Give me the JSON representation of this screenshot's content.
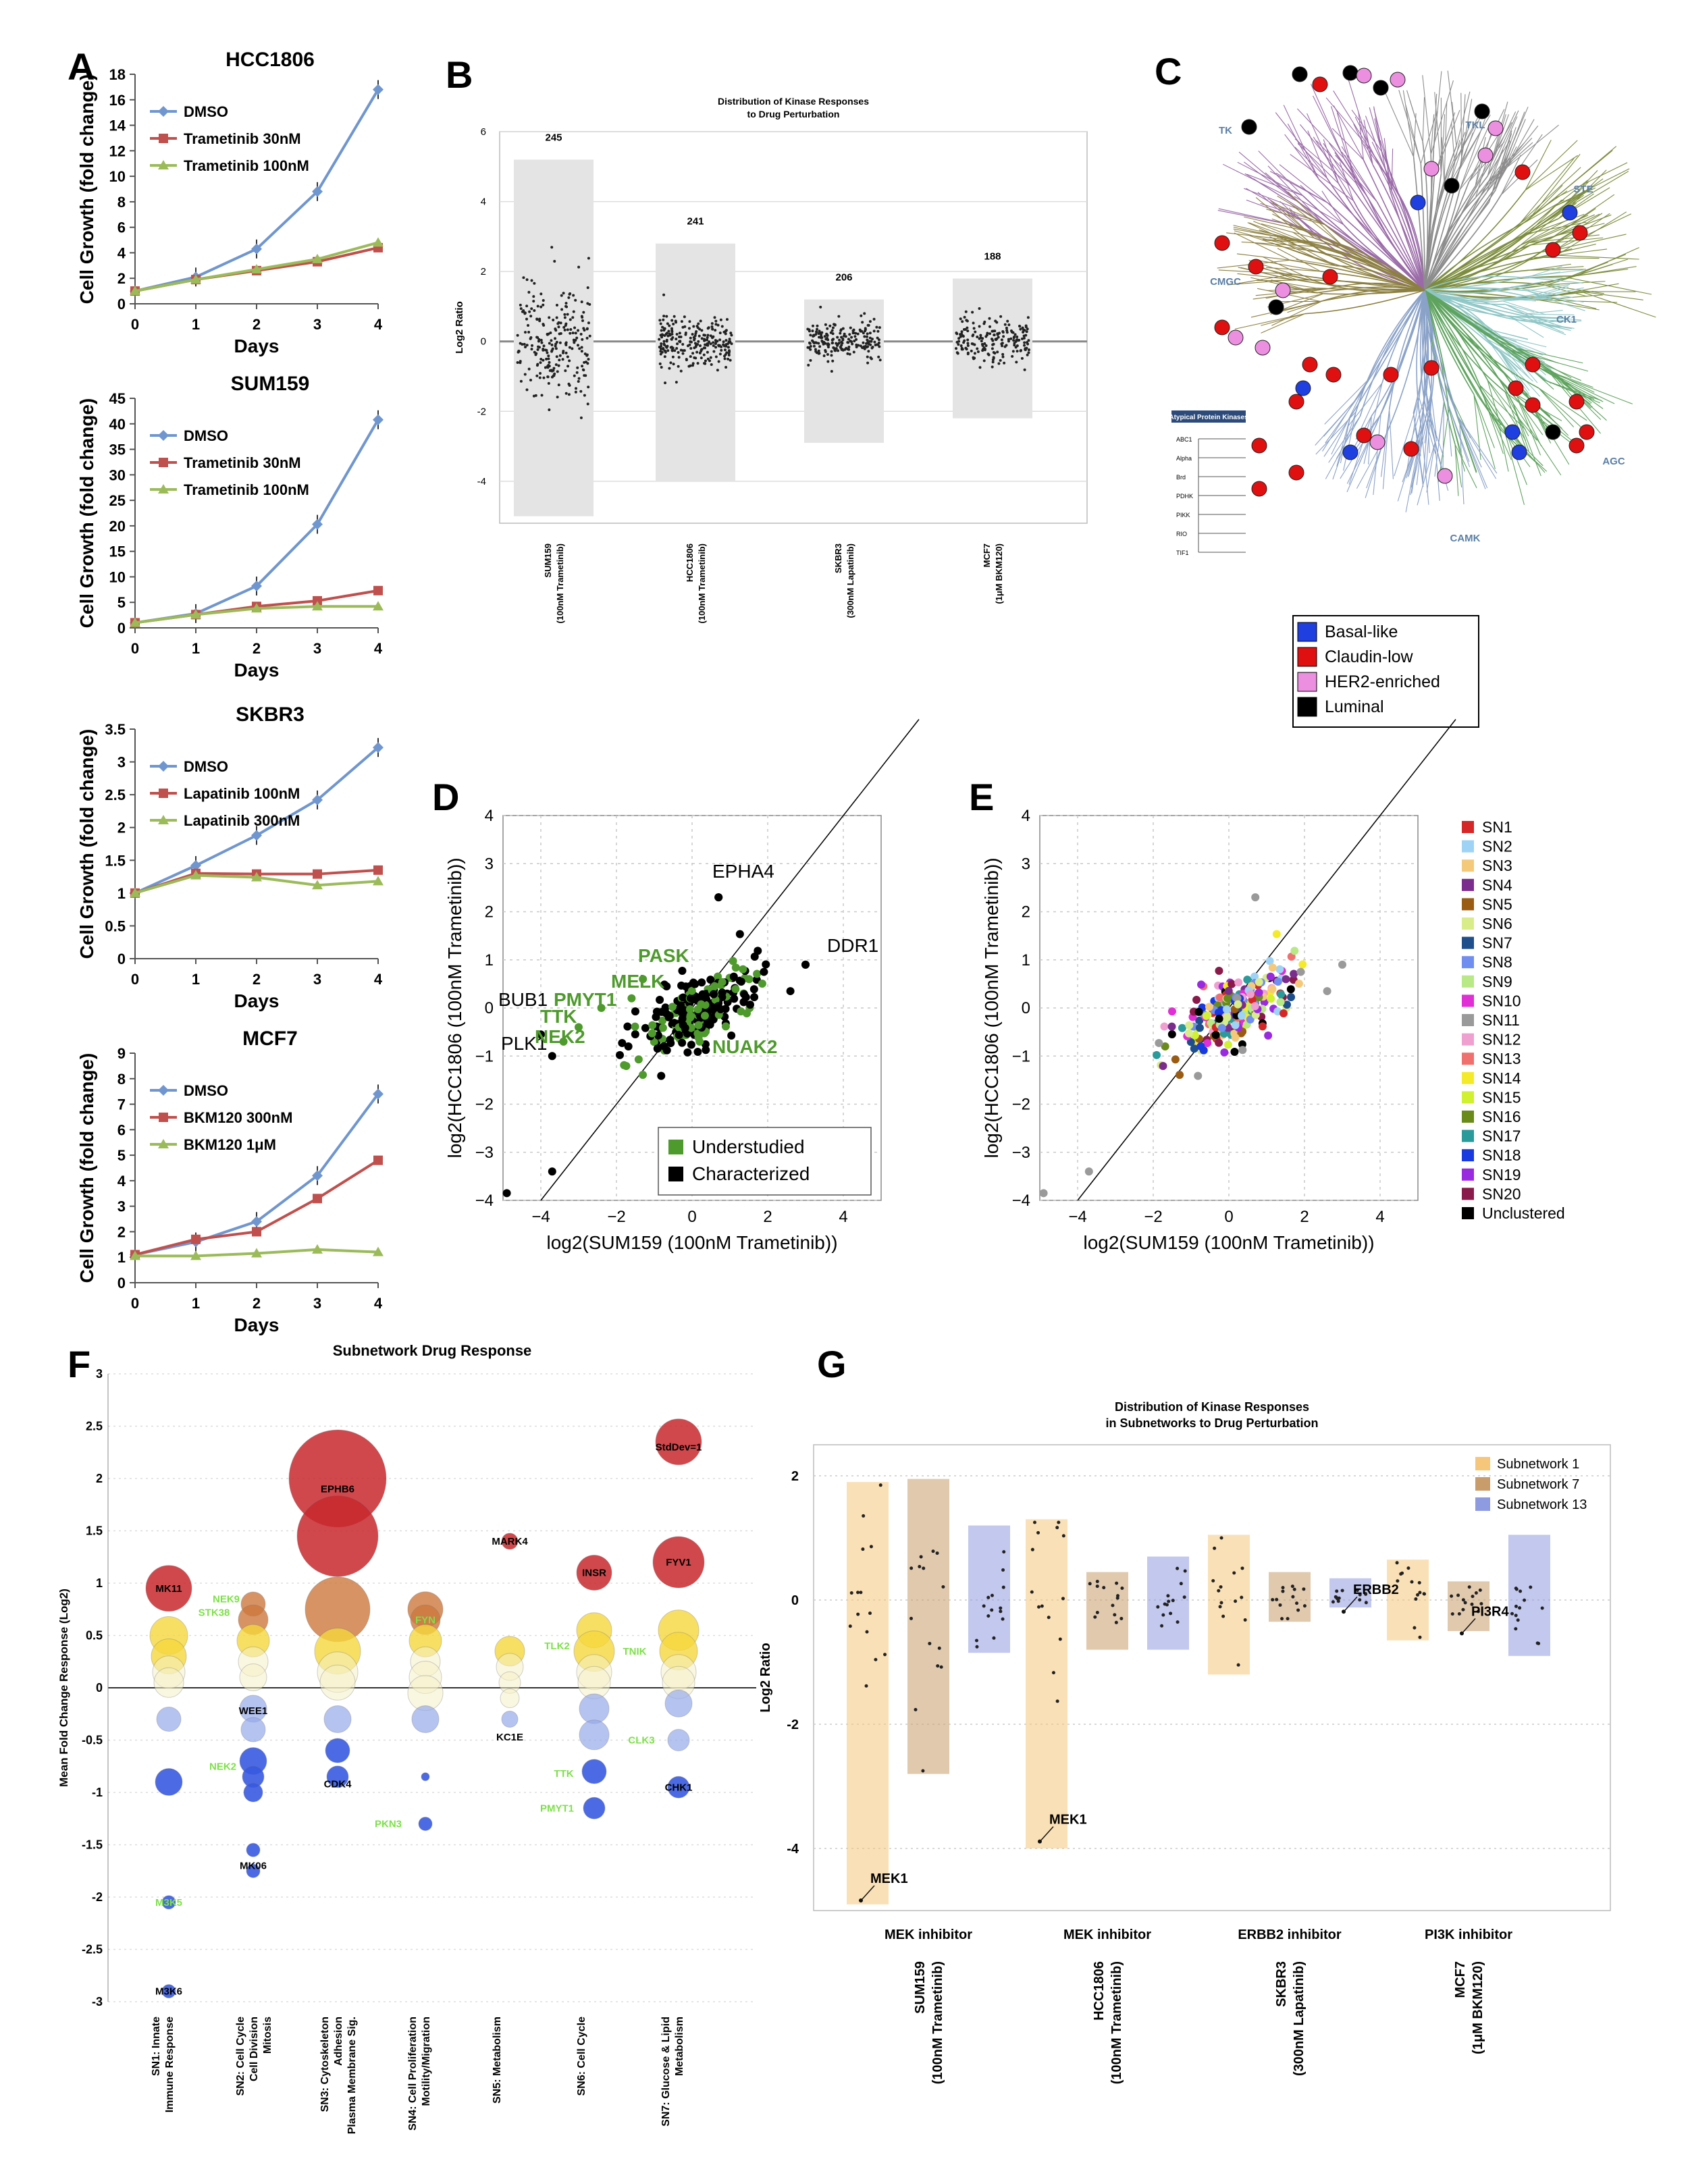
{
  "panel_letters": {
    "A": "A",
    "B": "B",
    "C": "C",
    "D": "D",
    "E": "E",
    "F": "F",
    "G": "G"
  },
  "colors": {
    "dmso": "#6f96cf",
    "low": "#c0504d",
    "high": "#9bbb59",
    "understudied": "#4e9a2c",
    "characterized": "#000000"
  },
  "chart_data": [
    {
      "id": "A1",
      "type": "line",
      "title": "HCC1806",
      "xlabel": "Days",
      "ylabel": "Cell Growth (fold change)",
      "x": [
        0,
        1,
        2,
        3,
        4
      ],
      "ylim": [
        0,
        18
      ],
      "yticks": [
        0,
        2,
        4,
        6,
        8,
        10,
        12,
        14,
        16,
        18
      ],
      "series": [
        {
          "name": "DMSO",
          "values": [
            1,
            2.1,
            4.3,
            8.8,
            16.8
          ]
        },
        {
          "name": "Trametinib 30nM",
          "values": [
            1,
            1.9,
            2.6,
            3.3,
            4.4
          ]
        },
        {
          "name": "Trametinib 100nM",
          "values": [
            1,
            1.9,
            2.7,
            3.5,
            4.8
          ]
        }
      ]
    },
    {
      "id": "A2",
      "type": "line",
      "title": "SUM159",
      "xlabel": "Days",
      "ylabel": "Cell Growth (fold change)",
      "x": [
        0,
        1,
        2,
        3,
        4
      ],
      "ylim": [
        0,
        45
      ],
      "yticks": [
        0,
        5,
        10,
        15,
        20,
        25,
        30,
        35,
        40,
        45
      ],
      "series": [
        {
          "name": "DMSO",
          "values": [
            1,
            2.8,
            8.2,
            20.3,
            40.8
          ]
        },
        {
          "name": "Trametinib 30nM",
          "values": [
            1,
            2.6,
            4.2,
            5.3,
            7.3
          ]
        },
        {
          "name": "Trametinib 100nM",
          "values": [
            1,
            2.6,
            3.8,
            4.2,
            4.2
          ]
        }
      ]
    },
    {
      "id": "A3",
      "type": "line",
      "title": "SKBR3",
      "xlabel": "Days",
      "ylabel": "Cell Growth (fold change)",
      "x": [
        0,
        1,
        2,
        3,
        4
      ],
      "ylim": [
        0,
        3.5
      ],
      "yticks": [
        0,
        0.5,
        1,
        1.5,
        2,
        2.5,
        3,
        3.5
      ],
      "series": [
        {
          "name": "DMSO",
          "values": [
            1.0,
            1.42,
            1.88,
            2.42,
            3.22
          ]
        },
        {
          "name": "Lapatinib 100nM",
          "values": [
            1.0,
            1.3,
            1.29,
            1.29,
            1.35
          ]
        },
        {
          "name": "Lapatinib 300nM",
          "values": [
            1.0,
            1.27,
            1.24,
            1.12,
            1.18
          ]
        }
      ]
    },
    {
      "id": "A4",
      "type": "line",
      "title": "MCF7",
      "xlabel": "Days",
      "ylabel": "Cell Growth (fold change)",
      "x": [
        0,
        1,
        2,
        3,
        4
      ],
      "ylim": [
        0,
        9
      ],
      "yticks": [
        0,
        1,
        2,
        3,
        4,
        5,
        6,
        7,
        8,
        9
      ],
      "series": [
        {
          "name": "DMSO",
          "values": [
            1.1,
            1.6,
            2.4,
            4.2,
            7.4
          ]
        },
        {
          "name": "BKM120 300nM",
          "values": [
            1.1,
            1.7,
            2.0,
            3.3,
            4.8
          ]
        },
        {
          "name": "BKM120 1μM",
          "values": [
            1.05,
            1.05,
            1.15,
            1.3,
            1.2
          ]
        }
      ]
    },
    {
      "id": "B",
      "type": "scatter",
      "title": "Distribution of Kinase Responses",
      "title2": "to Drug Perturbation",
      "ylabel": "Log2 Ratio",
      "ylim": [
        -5.2,
        6
      ],
      "yticks": [
        -4,
        -2,
        0,
        2,
        4,
        6
      ],
      "groups": [
        {
          "name": "SUM159",
          "sub": "(100nM Trametinib)",
          "count": "245",
          "min": -5.0,
          "max": 5.2
        },
        {
          "name": "HCC1806",
          "sub": "(100nM Trametinib)",
          "count": "241",
          "min": -4.0,
          "max": 2.8
        },
        {
          "name": "SKBR3",
          "sub": "(300nM Lapatinib)",
          "count": "206",
          "min": -2.9,
          "max": 1.2
        },
        {
          "name": "MCF7",
          "sub": "(1μM BKM120)",
          "count": "188",
          "min": -2.2,
          "max": 1.8
        }
      ]
    },
    {
      "id": "D",
      "type": "scatter",
      "xlabel": "log2(SUM159 (100nM Trametinib))",
      "ylabel": "log2(HCC1806 (100nM Trametinib))",
      "xlim": [
        -5,
        5
      ],
      "ylim": [
        -4,
        4
      ],
      "xticks": [
        -4,
        -2,
        0,
        2,
        4
      ],
      "yticks": [
        -4,
        -3,
        -2,
        -1,
        0,
        1,
        2,
        3,
        4
      ],
      "legend": [
        "Understudied",
        "Characterized"
      ],
      "labels": [
        {
          "text": "EPHA4",
          "x": 0.7,
          "y": 2.3,
          "group": "characterized"
        },
        {
          "text": "DDR1",
          "x": 3.0,
          "y": 0.9,
          "group": "characterized"
        },
        {
          "text": "BUB1",
          "x": -4.0,
          "y": -0.55,
          "group": "characterized"
        },
        {
          "text": "PLK1",
          "x": -3.7,
          "y": -1.0,
          "group": "characterized"
        },
        {
          "text": "PASK",
          "x": -1.3,
          "y": 0.6,
          "group": "understudied"
        },
        {
          "text": "MELK",
          "x": -1.6,
          "y": 0.2,
          "group": "understudied"
        },
        {
          "text": "PMYT1",
          "x": -2.4,
          "y": 0.0,
          "group": "understudied"
        },
        {
          "text": "TTK",
          "x": -3.0,
          "y": -0.4,
          "group": "understudied"
        },
        {
          "text": "NEK2",
          "x": -3.4,
          "y": -0.7,
          "group": "understudied"
        },
        {
          "text": "NUAK2",
          "x": 0.2,
          "y": -0.7,
          "group": "understudied"
        }
      ]
    },
    {
      "id": "E",
      "type": "scatter",
      "xlabel": "log2(SUM159 (100nM Trametinib))",
      "ylabel": "log2(HCC1806 (100nM Trametinib))",
      "xlim": [
        -5,
        5
      ],
      "ylim": [
        -4,
        4
      ],
      "xticks": [
        -4,
        -2,
        0,
        2,
        4
      ],
      "yticks": [
        -4,
        -3,
        -2,
        -1,
        0,
        1,
        2,
        3,
        4
      ],
      "legend": [
        {
          "name": "SN1",
          "color": "#d62728"
        },
        {
          "name": "SN2",
          "color": "#9fd3f5"
        },
        {
          "name": "SN3",
          "color": "#f5c97a"
        },
        {
          "name": "SN4",
          "color": "#7b2d8e"
        },
        {
          "name": "SN5",
          "color": "#9a5b13"
        },
        {
          "name": "SN6",
          "color": "#d9ec8a"
        },
        {
          "name": "SN7",
          "color": "#1f4e8c"
        },
        {
          "name": "SN8",
          "color": "#6f8ef0"
        },
        {
          "name": "SN9",
          "color": "#b8e986"
        },
        {
          "name": "SN10",
          "color": "#e02fd4"
        },
        {
          "name": "SN11",
          "color": "#9a9a9a"
        },
        {
          "name": "SN12",
          "color": "#f0a0d0"
        },
        {
          "name": "SN13",
          "color": "#f07070"
        },
        {
          "name": "SN14",
          "color": "#f5ea2a"
        },
        {
          "name": "SN15",
          "color": "#d0f030"
        },
        {
          "name": "SN16",
          "color": "#6a8a1a"
        },
        {
          "name": "SN17",
          "color": "#2a9a9a"
        },
        {
          "name": "SN18",
          "color": "#1a3ae0"
        },
        {
          "name": "SN19",
          "color": "#9a2ae0"
        },
        {
          "name": "SN20",
          "color": "#8a1a4a"
        },
        {
          "name": "Unclustered",
          "color": "#000000"
        }
      ]
    },
    {
      "id": "F",
      "type": "scatter",
      "title": "Subnetwork Drug Response",
      "ylabel": "Mean Fold Change Response (Log2)",
      "ylim": [
        -3,
        3
      ],
      "yticks": [
        -3,
        -2.5,
        -2,
        -1.5,
        -1,
        -0.5,
        0,
        0.5,
        1,
        1.5,
        2,
        2.5,
        3
      ],
      "categories": [
        [
          "SN1: Innate",
          "Immune Response"
        ],
        [
          "SN2: Cell Cycle",
          "Cell Division",
          "Mitosis"
        ],
        [
          "SN3: Cytoskeleton",
          "Adhesion",
          "Plasma Membrane Sig."
        ],
        [
          "SN4: Cell Proliferation",
          "Motility/Migration"
        ],
        [
          "SN5: Metabolism"
        ],
        [
          "SN6: Cell Cycle"
        ],
        [
          "SN7: Glucose & Lipid",
          "Metabolism"
        ]
      ],
      "labels": [
        {
          "text": "MK11",
          "cat": 0,
          "y": 0.95,
          "color": "#000"
        },
        {
          "text": "M3K5",
          "cat": 0,
          "y": -2.05,
          "color": "#7ee04a"
        },
        {
          "text": "M3K6",
          "cat": 0,
          "y": -2.9,
          "color": "#000"
        },
        {
          "text": "NEK9",
          "cat": 1,
          "y": 0.85,
          "color": "#7ee04a"
        },
        {
          "text": "STK38",
          "cat": 1,
          "y": 0.72,
          "color": "#7ee04a"
        },
        {
          "text": "WEE1",
          "cat": 1,
          "y": -0.22,
          "color": "#000"
        },
        {
          "text": "NEK2",
          "cat": 1,
          "y": -0.75,
          "color": "#7ee04a"
        },
        {
          "text": "MK06",
          "cat": 1,
          "y": -1.7,
          "color": "#000"
        },
        {
          "text": "EPHB6",
          "cat": 2,
          "y": 1.9,
          "color": "#000"
        },
        {
          "text": "CDK4",
          "cat": 2,
          "y": -0.92,
          "color": "#000"
        },
        {
          "text": "FYN",
          "cat": 3,
          "y": 0.65,
          "color": "#7ee04a"
        },
        {
          "text": "PKN3",
          "cat": 3,
          "y": -1.3,
          "color": "#7ee04a"
        },
        {
          "text": "MARK4",
          "cat": 4,
          "y": 1.4,
          "color": "#000"
        },
        {
          "text": "KC1E",
          "cat": 4,
          "y": -0.47,
          "color": "#000"
        },
        {
          "text": "INSR",
          "cat": 5,
          "y": 1.1,
          "color": "#000"
        },
        {
          "text": "TLK2",
          "cat": 5,
          "y": 0.4,
          "color": "#7ee04a"
        },
        {
          "text": "TNIK",
          "cat": 5,
          "y": 0.35,
          "color": "#7ee04a"
        },
        {
          "text": "TTK",
          "cat": 5,
          "y": -0.82,
          "color": "#7ee04a"
        },
        {
          "text": "PMYT1",
          "cat": 5,
          "y": -1.15,
          "color": "#7ee04a"
        },
        {
          "text": "StdDev=1",
          "cat": 6,
          "y": 2.3,
          "color": "#000"
        },
        {
          "text": "FYV1",
          "cat": 6,
          "y": 1.2,
          "color": "#000"
        },
        {
          "text": "CLK3",
          "cat": 6,
          "y": -0.5,
          "color": "#7ee04a"
        },
        {
          "text": "CHK1",
          "cat": 6,
          "y": -0.95,
          "color": "#000"
        }
      ]
    },
    {
      "id": "G",
      "type": "scatter",
      "title": "Distribution of Kinase Responses",
      "title2": "in Subnetworks to Drug Perturbation",
      "ylabel": "Log2 Ratio",
      "ylim": [
        -5,
        2.5
      ],
      "yticks": [
        -4,
        -2,
        0,
        2
      ],
      "legend": [
        {
          "name": "Subnetwork 1",
          "color": "#f6c77a"
        },
        {
          "name": "Subnetwork 7",
          "color": "#c99c6c"
        },
        {
          "name": "Subnetwork 13",
          "color": "#8f9be0"
        }
      ],
      "groups": [
        {
          "name": "SUM159",
          "sub": "(100nM Trametinib)",
          "inhibitor": "MEK inhibitor",
          "bars": [
            {
              "min": -4.9,
              "max": 1.9
            },
            {
              "min": -2.8,
              "max": 1.95
            },
            {
              "min": -0.85,
              "max": 1.2
            }
          ]
        },
        {
          "name": "HCC1806",
          "sub": "(100nM Trametinib)",
          "inhibitor": "MEK inhibitor",
          "bars": [
            {
              "min": -4.0,
              "max": 1.3
            },
            {
              "min": -0.8,
              "max": 0.45
            },
            {
              "min": -0.8,
              "max": 0.7
            }
          ]
        },
        {
          "name": "SKBR3",
          "sub": "(300nM Lapatinib)",
          "inhibitor": "ERBB2 inhibitor",
          "bars": [
            {
              "min": -1.2,
              "max": 1.05
            },
            {
              "min": -0.35,
              "max": 0.45
            },
            {
              "min": -0.12,
              "max": 0.35
            }
          ]
        },
        {
          "name": "MCF7",
          "sub": "(1μM BKM120)",
          "inhibitor": "PI3K inhibitor",
          "bars": [
            {
              "min": -0.65,
              "max": 0.65
            },
            {
              "min": -0.5,
              "max": 0.3
            },
            {
              "min": -0.9,
              "max": 1.05
            }
          ]
        }
      ],
      "labels": [
        {
          "text": "MEK1",
          "group": 0,
          "bar": 0,
          "y": -4.75
        },
        {
          "text": "MEK1",
          "group": 1,
          "bar": 0,
          "y": -3.8
        },
        {
          "text": "ERBB2",
          "group": 2,
          "bar": 2,
          "y": -0.1
        },
        {
          "text": "PI3R4",
          "group": 3,
          "bar": 1,
          "y": -0.45
        }
      ]
    }
  ],
  "panel_c": {
    "group_labels": [
      "TK",
      "TKL",
      "STE",
      "CK1",
      "AGC",
      "CAMK",
      "CMGC"
    ],
    "inset_title": "Atypical Protein Kinases",
    "inset_labels": [
      "ABC1",
      "Alpha",
      "Brd",
      "PDHK",
      "PIKK",
      "RIO",
      "TIF1"
    ],
    "legend": [
      {
        "name": "Basal-like",
        "color": "#1f3fe0"
      },
      {
        "name": "Claudin-low",
        "color": "#e01010"
      },
      {
        "name": "HER2-enriched",
        "color": "#ec8fe0"
      },
      {
        "name": "Luminal",
        "color": "#000000"
      }
    ]
  }
}
